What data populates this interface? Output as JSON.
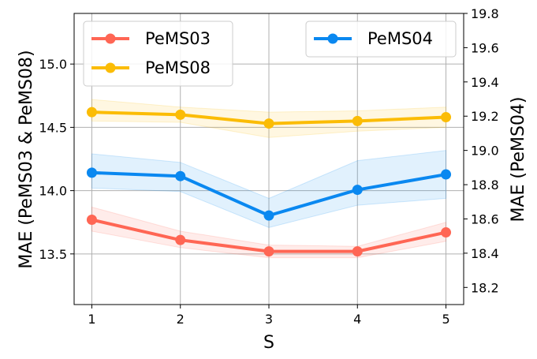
{
  "chart_data": {
    "type": "line",
    "xlabel": "S",
    "ylabel_left": "MAE (PeMS03 & PeMS08)",
    "ylabel_right": "MAE (PeMS04)",
    "x": [
      1,
      2,
      3,
      4,
      5
    ],
    "xticks": [
      "1",
      "2",
      "3",
      "4",
      "5"
    ],
    "xlim": [
      0.8,
      5.2
    ],
    "ylim_left": [
      13.1,
      15.4
    ],
    "ylim_right": [
      18.1,
      19.8
    ],
    "yticks_left": [
      "13.5",
      "14.0",
      "14.5",
      "15.0"
    ],
    "yticks_right": [
      "18.2",
      "18.4",
      "18.6",
      "18.8",
      "19.0",
      "19.2",
      "19.4",
      "19.6",
      "19.8"
    ],
    "grid": true,
    "legend_left_placement": "top-left",
    "legend_right_placement": "top-right",
    "series": [
      {
        "name": "PeMS03",
        "axis": "left",
        "color": "#ff6654",
        "values": [
          13.77,
          13.61,
          13.52,
          13.52,
          13.67
        ],
        "band_low": [
          13.68,
          13.55,
          13.47,
          13.47,
          13.6
        ],
        "band_high": [
          13.87,
          13.68,
          13.57,
          13.56,
          13.75
        ]
      },
      {
        "name": "PeMS08",
        "axis": "left",
        "color": "#fbbc05",
        "values": [
          14.62,
          14.6,
          14.53,
          14.55,
          14.58
        ],
        "band_low": [
          14.55,
          14.54,
          14.42,
          14.47,
          14.5
        ],
        "band_high": [
          14.72,
          14.66,
          14.62,
          14.63,
          14.66
        ]
      },
      {
        "name": "PeMS04",
        "axis": "right",
        "color": "#0a88f0",
        "values": [
          18.87,
          18.85,
          18.62,
          18.77,
          18.86
        ],
        "band_low": [
          18.78,
          18.76,
          18.55,
          18.68,
          18.72
        ],
        "band_high": [
          18.98,
          18.93,
          18.72,
          18.94,
          19.0
        ]
      }
    ]
  }
}
